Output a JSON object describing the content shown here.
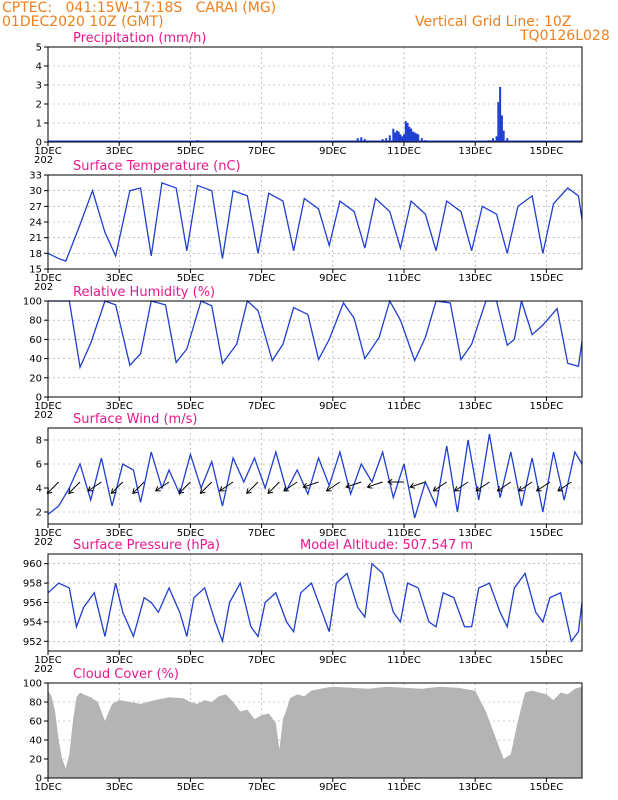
{
  "header": {
    "line1": "CPTEC:   041:15W-17:18S   CARAI (MG)",
    "line2": "01DEC2020 10Z (GMT)",
    "grid_note": "Vertical Grid Line: 10Z",
    "run_code": "TQ0126L028"
  },
  "x_axis": {
    "labels": [
      "1DEC",
      "3DEC",
      "5DEC",
      "7DEC",
      "9DEC",
      "11DEC",
      "13DEC",
      "15DEC"
    ],
    "label_days": [
      0,
      2,
      4,
      6,
      8,
      10,
      12,
      14
    ],
    "clipped_year_label": "202",
    "range_days": [
      0,
      15
    ]
  },
  "colors": {
    "line": "#1f3fd0",
    "bars": "#1f3fd0",
    "cloud": "#b4b4b4",
    "title": "#e8198b",
    "header": "#f07f1e",
    "grid": "#9a9a9a"
  },
  "chart_data": [
    {
      "type": "bar",
      "title": "Precipitation (mm/h)",
      "ylim": [
        0,
        5
      ],
      "yticks": [
        0,
        1,
        2,
        3,
        4,
        5
      ],
      "grid": true,
      "x_days": [
        0.3,
        0.6,
        1.0,
        4.1,
        4.2,
        8.7,
        8.8,
        8.9,
        9.1,
        9.4,
        9.5,
        9.6,
        9.7,
        9.75,
        9.8,
        9.85,
        9.9,
        9.95,
        10.0,
        10.05,
        10.1,
        10.15,
        10.2,
        10.25,
        10.3,
        10.35,
        10.4,
        10.5,
        10.6,
        12.3,
        12.4,
        12.5,
        12.6,
        12.65,
        12.7,
        12.75,
        12.8,
        12.9
      ],
      "values": [
        0.05,
        0.05,
        0.05,
        0.05,
        0.1,
        0.2,
        0.25,
        0.15,
        0.05,
        0.15,
        0.2,
        0.35,
        0.7,
        0.5,
        0.6,
        0.55,
        0.4,
        0.3,
        0.4,
        1.1,
        1.0,
        0.8,
        0.7,
        0.55,
        0.5,
        0.45,
        0.4,
        0.2,
        0.1,
        0.05,
        0.1,
        0.2,
        0.3,
        2.1,
        2.9,
        1.4,
        0.6,
        0.2
      ]
    },
    {
      "type": "line",
      "title": "Surface Temperature (nC)",
      "ylim": [
        15,
        33
      ],
      "yticks": [
        15,
        18,
        21,
        24,
        27,
        30,
        33
      ],
      "grid": true,
      "series": [
        {
          "x_days": [
            0.0,
            0.3,
            0.5,
            0.9,
            1.25,
            1.6,
            1.9,
            2.3,
            2.6,
            2.9,
            3.2,
            3.6,
            3.9,
            4.2,
            4.6,
            4.9,
            5.2,
            5.6,
            5.9,
            6.2,
            6.6,
            6.9,
            7.2,
            7.6,
            7.9,
            8.2,
            8.6,
            8.9,
            9.2,
            9.6,
            9.9,
            10.2,
            10.6,
            10.9,
            11.2,
            11.6,
            11.9,
            12.2,
            12.6,
            12.9,
            13.2,
            13.6,
            13.9,
            14.2,
            14.6,
            14.9,
            15.0
          ],
          "values": [
            18.0,
            17.0,
            16.5,
            23.5,
            30.0,
            22.0,
            17.5,
            30.0,
            30.5,
            17.5,
            31.5,
            30.5,
            18.5,
            31.0,
            30.0,
            17.0,
            30.0,
            29.0,
            18.0,
            29.5,
            28.0,
            18.5,
            28.5,
            26.5,
            19.5,
            28.0,
            26.0,
            19.0,
            28.5,
            26.0,
            19.0,
            28.0,
            25.5,
            18.5,
            28.0,
            26.0,
            18.5,
            27.0,
            25.5,
            18.0,
            27.0,
            29.0,
            18.0,
            27.5,
            30.5,
            29.0,
            24.5
          ]
        }
      ]
    },
    {
      "type": "line",
      "title": "Relative Humidity (%)",
      "ylim": [
        0,
        100
      ],
      "yticks": [
        0,
        20,
        40,
        60,
        80,
        100
      ],
      "grid": true,
      "series": [
        {
          "x_days": [
            0.0,
            0.3,
            0.6,
            0.9,
            1.2,
            1.6,
            1.9,
            2.3,
            2.6,
            2.9,
            3.3,
            3.6,
            3.9,
            4.3,
            4.6,
            4.9,
            5.3,
            5.6,
            5.9,
            6.3,
            6.6,
            6.9,
            7.3,
            7.6,
            7.9,
            8.3,
            8.6,
            8.9,
            9.3,
            9.6,
            9.9,
            10.3,
            10.6,
            10.9,
            11.3,
            11.6,
            11.9,
            12.3,
            12.6,
            12.9,
            13.1,
            13.3,
            13.6,
            13.9,
            14.3,
            14.6,
            14.9,
            15.0
          ],
          "values": [
            100,
            100,
            100,
            31,
            56,
            100,
            96,
            33,
            45,
            100,
            96,
            36,
            50,
            100,
            95,
            35,
            55,
            100,
            90,
            38,
            55,
            93,
            86,
            39,
            60,
            98,
            82,
            40,
            62,
            100,
            80,
            38,
            62,
            100,
            98,
            39,
            55,
            100,
            100,
            54,
            60,
            100,
            65,
            75,
            92,
            35,
            32,
            58
          ]
        }
      ]
    },
    {
      "type": "line",
      "title": "Surface Wind (m/s)",
      "ylim": [
        1,
        9
      ],
      "yticks": [
        2,
        4,
        6,
        8
      ],
      "grid": true,
      "series": [
        {
          "x_days": [
            0.0,
            0.3,
            0.6,
            0.9,
            1.2,
            1.5,
            1.8,
            2.1,
            2.4,
            2.6,
            2.9,
            3.2,
            3.4,
            3.7,
            4.0,
            4.3,
            4.6,
            4.9,
            5.2,
            5.5,
            5.8,
            6.1,
            6.4,
            6.7,
            7.0,
            7.3,
            7.6,
            7.9,
            8.2,
            8.5,
            8.8,
            9.1,
            9.4,
            9.7,
            10.0,
            10.3,
            10.6,
            10.9,
            11.2,
            11.5,
            11.8,
            12.1,
            12.4,
            12.7,
            13.0,
            13.3,
            13.6,
            13.9,
            14.2,
            14.5,
            14.8,
            15.0
          ],
          "values": [
            1.8,
            2.5,
            4.0,
            6.0,
            3.0,
            6.5,
            2.5,
            6.0,
            5.5,
            2.8,
            7.0,
            4.0,
            5.5,
            3.5,
            6.8,
            4.0,
            6.2,
            2.5,
            6.5,
            4.5,
            6.5,
            4.0,
            7.0,
            3.8,
            5.5,
            3.5,
            6.5,
            4.2,
            7.0,
            3.5,
            6.0,
            4.5,
            7.0,
            3.2,
            6.0,
            1.5,
            4.5,
            2.5,
            7.5,
            2.0,
            8.0,
            3.0,
            8.5,
            3.2,
            7.0,
            2.5,
            6.5,
            2.0,
            7.0,
            3.0,
            7.0,
            6.0
          ]
        }
      ],
      "wind_vectors": {
        "x_days": [
          0.3,
          0.9,
          1.5,
          2.1,
          2.7,
          3.4,
          4.0,
          4.6,
          5.2,
          5.9,
          6.5,
          7.0,
          7.6,
          8.2,
          8.8,
          9.4,
          10.0,
          10.6,
          11.2,
          11.8,
          12.4,
          13.0,
          13.6,
          14.1,
          14.7
        ],
        "speed": [
          4.5,
          4.5,
          4.5,
          4.5,
          4.5,
          4.5,
          4.5,
          4.5,
          4.5,
          4.5,
          4.5,
          4.5,
          4.5,
          4.5,
          4.5,
          4.5,
          4.5,
          4.5,
          4.5,
          4.5,
          4.5,
          4.5,
          4.5,
          4.5,
          4.5
        ],
        "u": [
          -3,
          -3,
          -3,
          -3,
          -3,
          -3,
          -3,
          -3,
          -3,
          -3,
          -3,
          -3,
          -3,
          -3,
          -3,
          -3,
          -3,
          -3,
          -3,
          -3,
          -3,
          -3,
          -3,
          -3,
          -3
        ],
        "v": [
          -3,
          -3,
          -2,
          -3,
          -3,
          -2,
          -3,
          -3,
          -2,
          -3,
          -3,
          -2,
          -1,
          -2,
          -1,
          -1,
          0,
          -1,
          -2,
          -2,
          -2,
          -2,
          -2,
          -2,
          -2
        ]
      }
    },
    {
      "type": "line",
      "title": "Surface Pressure (hPa)",
      "annotation": "Model Altitude: 507.547  m",
      "ylim": [
        951,
        961
      ],
      "yticks": [
        952,
        954,
        956,
        958,
        960
      ],
      "grid": true,
      "series": [
        {
          "x_days": [
            0.0,
            0.3,
            0.6,
            0.8,
            1.0,
            1.3,
            1.6,
            1.9,
            2.1,
            2.4,
            2.7,
            2.9,
            3.1,
            3.4,
            3.7,
            3.9,
            4.1,
            4.4,
            4.7,
            4.9,
            5.1,
            5.4,
            5.7,
            5.9,
            6.1,
            6.4,
            6.7,
            6.9,
            7.1,
            7.4,
            7.7,
            7.9,
            8.1,
            8.4,
            8.7,
            8.9,
            9.1,
            9.4,
            9.7,
            9.9,
            10.1,
            10.4,
            10.7,
            10.9,
            11.1,
            11.4,
            11.7,
            11.9,
            12.1,
            12.4,
            12.7,
            12.9,
            13.1,
            13.4,
            13.7,
            13.9,
            14.1,
            14.4,
            14.7,
            14.9,
            15.0
          ],
          "values": [
            957,
            958,
            957.5,
            953.5,
            955.5,
            957,
            952.5,
            958,
            955,
            952.5,
            956.5,
            956,
            955,
            957.5,
            955,
            952.5,
            956.5,
            957.5,
            954,
            952,
            956,
            958,
            953.5,
            952.5,
            956,
            957,
            954,
            953,
            957,
            958,
            955,
            953,
            958,
            959,
            955.5,
            954.5,
            960,
            959,
            955,
            954,
            958,
            957.5,
            954,
            953.5,
            957,
            956.5,
            953.5,
            953.5,
            957.5,
            958,
            955,
            953.5,
            957.5,
            959,
            955,
            954,
            956.5,
            957,
            952,
            953,
            956
          ]
        }
      ]
    },
    {
      "type": "area",
      "title": "Cloud Cover (%)",
      "ylim": [
        0,
        100
      ],
      "yticks": [
        0,
        20,
        40,
        60,
        80,
        100
      ],
      "grid": true,
      "x_days": [
        0.0,
        0.1,
        0.2,
        0.3,
        0.4,
        0.5,
        0.6,
        0.7,
        0.8,
        0.9,
        1.0,
        1.2,
        1.4,
        1.6,
        1.8,
        2.0,
        2.3,
        2.6,
        3.0,
        3.4,
        3.8,
        4.0,
        4.2,
        4.4,
        4.6,
        4.8,
        5.0,
        5.2,
        5.4,
        5.6,
        5.8,
        6.0,
        6.2,
        6.4,
        6.5,
        6.6,
        6.7,
        6.8,
        7.0,
        7.2,
        7.4,
        7.8,
        8.0,
        8.5,
        9.0,
        9.5,
        10.0,
        10.5,
        11.0,
        11.5,
        12.0,
        12.3,
        12.6,
        12.8,
        13.0,
        13.2,
        13.4,
        13.6,
        13.8,
        14.0,
        14.2,
        14.4,
        14.6,
        14.8,
        15.0
      ],
      "values": [
        92,
        86,
        70,
        40,
        20,
        10,
        25,
        60,
        85,
        90,
        88,
        85,
        80,
        60,
        78,
        82,
        80,
        78,
        82,
        85,
        84,
        80,
        78,
        82,
        80,
        86,
        88,
        80,
        70,
        72,
        62,
        66,
        68,
        58,
        30,
        62,
        72,
        84,
        88,
        86,
        92,
        95,
        96,
        95,
        94,
        96,
        95,
        94,
        96,
        95,
        92,
        70,
        40,
        20,
        25,
        60,
        90,
        92,
        90,
        88,
        82,
        90,
        88,
        94,
        96
      ]
    }
  ]
}
